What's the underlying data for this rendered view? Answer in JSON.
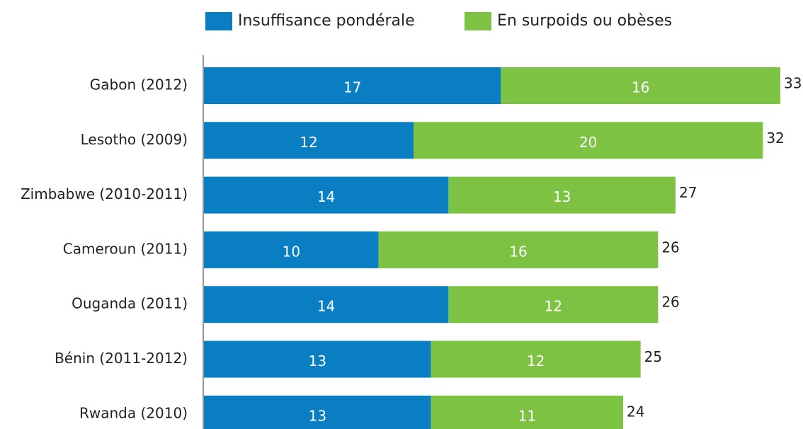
{
  "chart_data": {
    "type": "stacked-barh",
    "categories": [
      "Gabon (2012)",
      "Lesotho (2009)",
      "Zimbabwe (2010-2011)",
      "Cameroun (2011)",
      "Ouganda (2011)",
      "Bénin (2011-2012)",
      "Rwanda (2010)"
    ],
    "series": [
      {
        "name": "Insuffisance pondérale",
        "color": "#0a7ec2",
        "values": [
          17,
          12,
          14,
          10,
          14,
          13,
          13
        ]
      },
      {
        "name": "En surpoids ou obèses",
        "color": "#7dc242",
        "values": [
          16,
          20,
          13,
          16,
          12,
          12,
          11
        ]
      }
    ],
    "totals": [
      33,
      32,
      27,
      26,
      26,
      25,
      24
    ]
  }
}
